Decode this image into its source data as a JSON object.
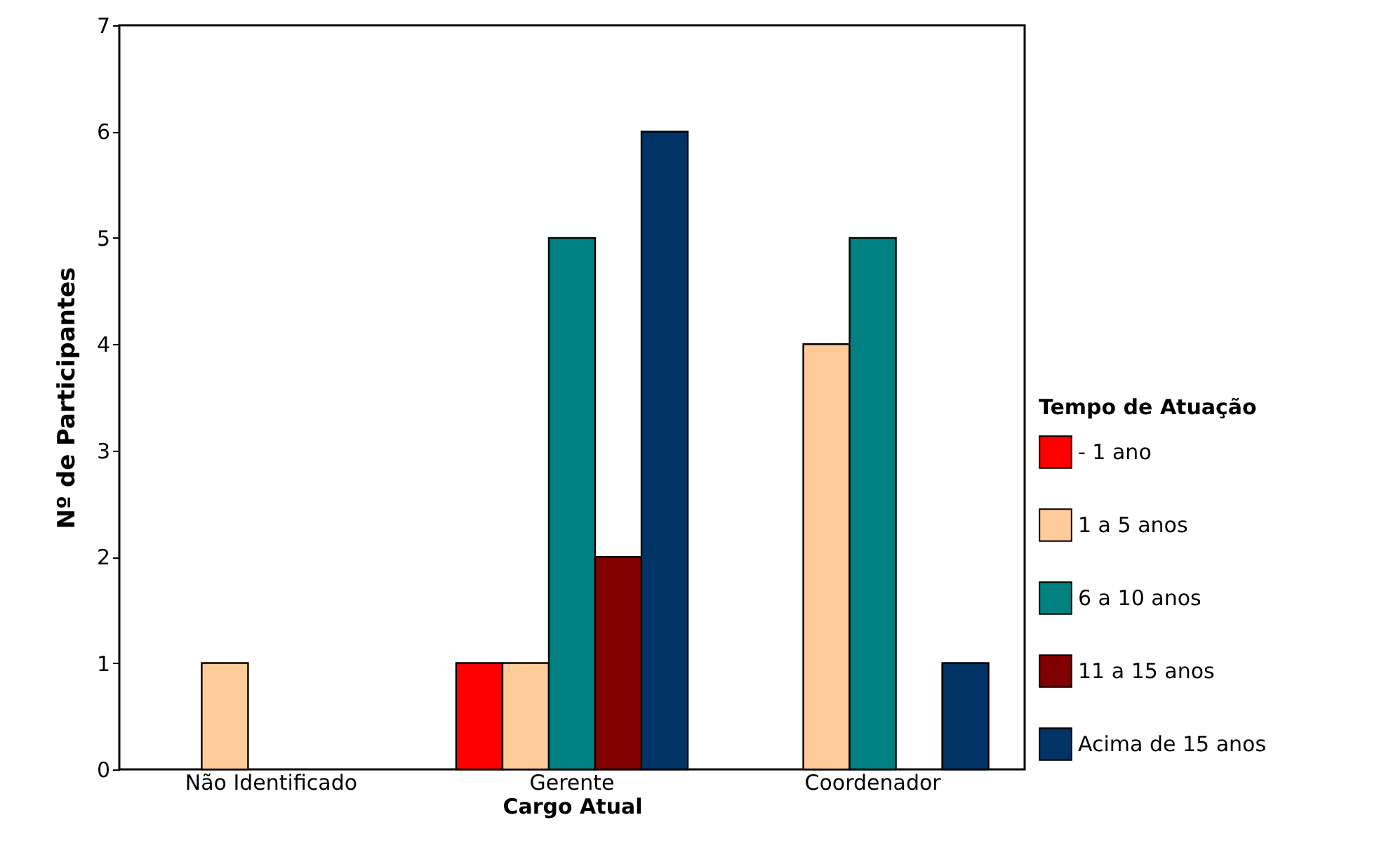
{
  "chart_data": {
    "type": "bar",
    "xlabel": "Cargo Atual",
    "ylabel": "Nº de Participantes",
    "legend_title": "Tempo de Atuação",
    "categories": [
      "Não Identificado",
      "Gerente",
      "Coordenador"
    ],
    "series": [
      {
        "name": "- 1 ano",
        "color": "#ff0000",
        "values": [
          null,
          1,
          null
        ]
      },
      {
        "name": "1 a 5 anos",
        "color": "#ffcc99",
        "values": [
          1,
          1,
          4
        ]
      },
      {
        "name": "6 a 10 anos",
        "color": "#008080",
        "values": [
          null,
          5,
          5
        ]
      },
      {
        "name": "11 a 15 anos",
        "color": "#800000",
        "values": [
          null,
          2,
          null
        ]
      },
      {
        "name": "Acima de 15 anos",
        "color": "#003366",
        "values": [
          null,
          6,
          1
        ]
      }
    ],
    "ylim": [
      0,
      7
    ],
    "yticks": [
      0,
      1,
      2,
      3,
      4,
      5,
      6,
      7
    ],
    "grid": false,
    "legend": "right"
  }
}
